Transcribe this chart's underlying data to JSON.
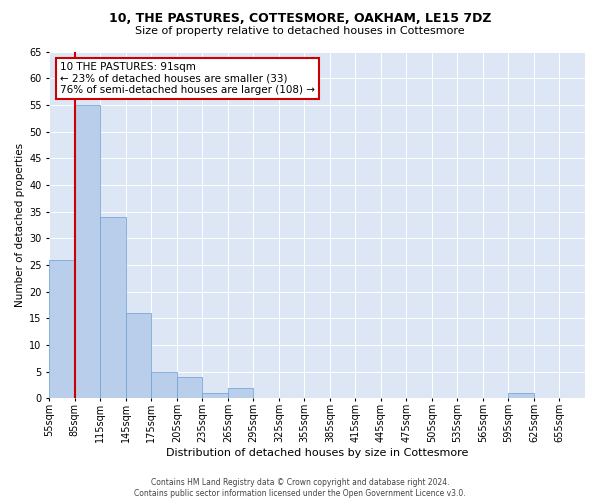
{
  "title": "10, THE PASTURES, COTTESMORE, OAKHAM, LE15 7DZ",
  "subtitle": "Size of property relative to detached houses in Cottesmore",
  "xlabel": "Distribution of detached houses by size in Cottesmore",
  "ylabel": "Number of detached properties",
  "bins": [
    "55sqm",
    "85sqm",
    "115sqm",
    "145sqm",
    "175sqm",
    "205sqm",
    "235sqm",
    "265sqm",
    "295sqm",
    "325sqm",
    "355sqm",
    "385sqm",
    "415sqm",
    "445sqm",
    "475sqm",
    "505sqm",
    "535sqm",
    "565sqm",
    "595sqm",
    "625sqm",
    "655sqm"
  ],
  "values": [
    26,
    55,
    34,
    16,
    5,
    4,
    1,
    2,
    0,
    0,
    0,
    0,
    0,
    0,
    0,
    0,
    0,
    0,
    1,
    0,
    0
  ],
  "bar_color": "#b8ceea",
  "bar_edge_color": "#6a9fd0",
  "property_line_x": 1.0,
  "property_line_color": "#cc0000",
  "annotation_text": "10 THE PASTURES: 91sqm\n← 23% of detached houses are smaller (33)\n76% of semi-detached houses are larger (108) →",
  "annotation_box_color": "white",
  "annotation_box_edgecolor": "#cc0000",
  "ylim": [
    0,
    65
  ],
  "yticks": [
    0,
    5,
    10,
    15,
    20,
    25,
    30,
    35,
    40,
    45,
    50,
    55,
    60,
    65
  ],
  "background_color": "#dce6f5",
  "grid_color": "white",
  "footer": "Contains HM Land Registry data © Crown copyright and database right 2024.\nContains public sector information licensed under the Open Government Licence v3.0.",
  "title_fontsize": 9,
  "subtitle_fontsize": 8,
  "ylabel_fontsize": 7.5,
  "xlabel_fontsize": 8,
  "tick_fontsize": 7,
  "footer_fontsize": 5.5
}
